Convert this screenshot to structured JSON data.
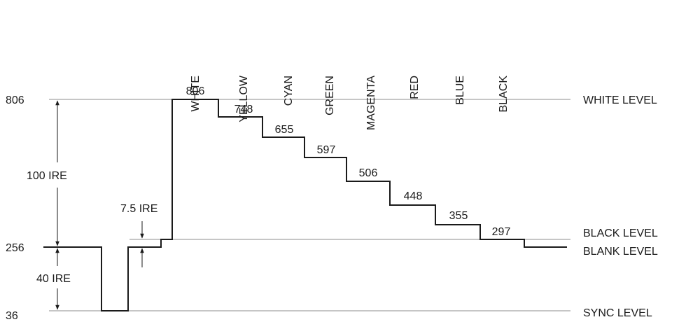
{
  "colors": {
    "signal": "#1a1a1a",
    "level_lines": "#8c8c8c",
    "text": "#1a1a1a"
  },
  "level_labels": {
    "white": "WHITE LEVEL",
    "black": "BLACK LEVEL",
    "blank": "BLANK LEVEL",
    "sync": "SYNC LEVEL"
  },
  "axis_values": {
    "white": "806",
    "blank": "256",
    "sync": "36"
  },
  "dimensions": {
    "ire100": "100 IRE",
    "ire40": "40 IRE",
    "ire75": "7.5 IRE"
  },
  "bars": [
    {
      "name": "WHITE",
      "value": "806"
    },
    {
      "name": "YELLOW",
      "value": "748"
    },
    {
      "name": "CYAN",
      "value": "655"
    },
    {
      "name": "GREEN",
      "value": "597"
    },
    {
      "name": "MAGENTA",
      "value": "506"
    },
    {
      "name": "RED",
      "value": "448"
    },
    {
      "name": "BLUE",
      "value": "355"
    },
    {
      "name": "BLACK",
      "value": "297"
    }
  ]
}
